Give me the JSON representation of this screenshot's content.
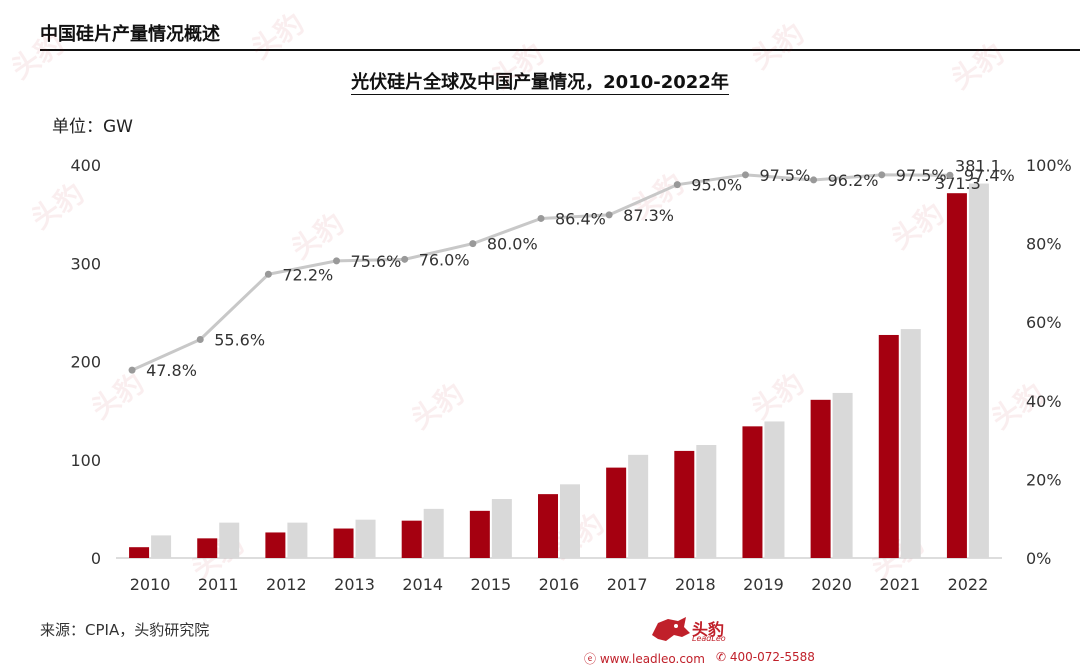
{
  "header": {
    "title": "中国硅片产量情况概述"
  },
  "unit_label": "单位：GW",
  "source": "来源：CPIA，头豹研究院",
  "logo": {
    "name": "头豹",
    "sub": "LeadLeo"
  },
  "contact": {
    "website": "www.leadleo.com",
    "phone": "400-072-5588"
  },
  "watermark": {
    "text": "头豹"
  },
  "colors": {
    "china_bar": "#a50010",
    "global_bar": "#d9d9d9",
    "share_line": "#c8c8c8",
    "brand": "#c0202a"
  },
  "chart_data": {
    "type": "bar",
    "title": "光伏硅片全球及中国产量情况，2010-2022年",
    "categories": [
      "2010",
      "2011",
      "2012",
      "2013",
      "2014",
      "2015",
      "2016",
      "2017",
      "2018",
      "2019",
      "2020",
      "2021",
      "2022"
    ],
    "series": [
      {
        "values": [
          11,
          20,
          26,
          30,
          38,
          48,
          65,
          92,
          109,
          134,
          161,
          227,
          371.3
        ]
      },
      {
        "values": [
          23,
          36,
          36,
          39,
          50,
          60,
          75,
          105,
          115,
          139,
          168,
          233,
          381.1
        ]
      }
    ],
    "bar_labels": {
      "2022": [
        "371.3",
        "381.1"
      ]
    },
    "share_series": {
      "type": "line",
      "axis": "right",
      "values": [
        47.8,
        55.6,
        72.2,
        75.6,
        76.0,
        80.0,
        86.4,
        87.3,
        95.0,
        97.5,
        96.2,
        97.5,
        97.4
      ],
      "labels": [
        "47.8%",
        "55.6%",
        "72.2%",
        "75.6%",
        "76.0%",
        "80.0%",
        "86.4%",
        "87.3%",
        "95.0%",
        "97.5%",
        "96.2%",
        "97.5%",
        "97.4%"
      ]
    },
    "ylim": [
      0,
      400
    ],
    "yticks": [
      "0",
      "100",
      "200",
      "300",
      "400"
    ],
    "y2lim": [
      0,
      100
    ],
    "y2ticks": [
      "0%",
      "20%",
      "40%",
      "60%",
      "80%",
      "100%"
    ],
    "grid": false,
    "legend": "none"
  }
}
